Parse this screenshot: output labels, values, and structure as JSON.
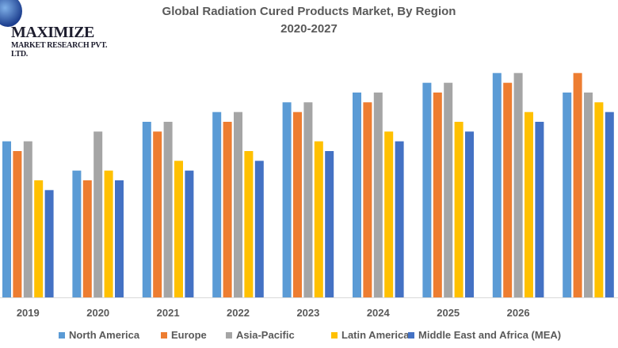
{
  "logo": {
    "line1": "MAXIMIZE",
    "line2": "MARKET RESEARCH PVT. LTD."
  },
  "chart_data": {
    "type": "bar",
    "title": "Global Radiation Cured Products Market, By Region",
    "subtitle": "2020-2027",
    "categories": [
      "2019",
      "2020",
      "2021",
      "2022",
      "2023",
      "2024",
      "2025",
      "2026",
      ""
    ],
    "ylim": [
      0,
      24
    ],
    "grid": false,
    "legend_position": "bottom",
    "series": [
      {
        "name": "North America",
        "color": "#5B9BD5",
        "values": [
          16,
          13,
          18,
          19,
          20,
          21,
          22,
          23,
          21
        ]
      },
      {
        "name": "Europe",
        "color": "#ED7D31",
        "values": [
          15,
          12,
          17,
          18,
          19,
          20,
          21,
          22,
          23
        ]
      },
      {
        "name": "Asia-Pacific",
        "color": "#A5A5A5",
        "values": [
          16,
          17,
          18,
          19,
          20,
          21,
          22,
          23,
          21
        ]
      },
      {
        "name": "Latin America",
        "color": "#FFC000",
        "values": [
          12,
          13,
          14,
          15,
          16,
          17,
          18,
          19,
          20
        ]
      },
      {
        "name": "Middle East and Africa (MEA)",
        "color": "#4472C4",
        "values": [
          11,
          12,
          13,
          14,
          15,
          16,
          17,
          18,
          19
        ]
      }
    ]
  }
}
